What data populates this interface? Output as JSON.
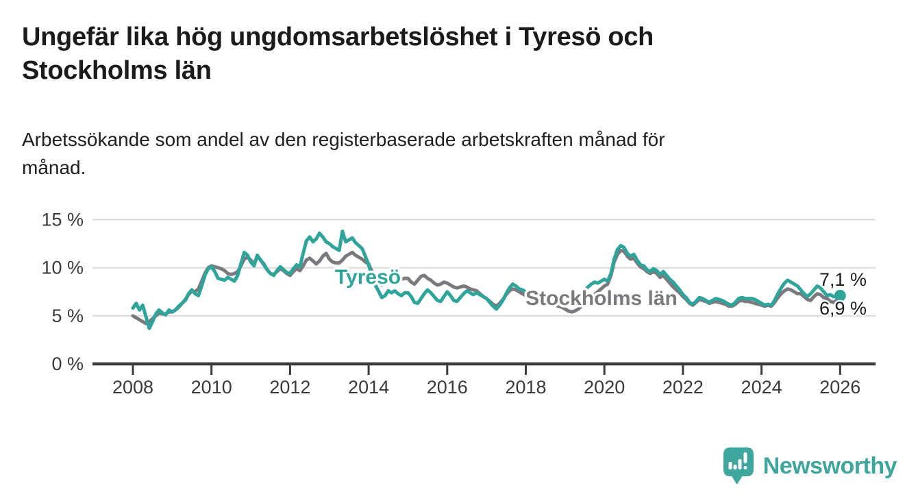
{
  "header": {
    "title": "Ungefär lika hög ungdomsarbetslöshet i Tyresö och\nStockholms län",
    "subtitle": "Arbetssökande som andel av den registerbaserade arbetskraften månad för\nmånad."
  },
  "colors": {
    "accent_teal": "#2fa49a",
    "line_gray": "#7c797e",
    "grid": "#d9d9d9",
    "axis": "#3b3b3b",
    "text": "#1d1d1d",
    "brand_teal": "#3fa69e"
  },
  "chart_data": {
    "type": "line",
    "title": "Ungefär lika hög ungdomsarbetslöshet i Tyresö och Stockholms län",
    "subtitle": "Arbetssökande som andel av den registerbaserade arbetskraften månad för månad.",
    "unit": "%",
    "frequency": "monthly",
    "x_start": "2008-01",
    "x_end": "2026-01",
    "xlabel": "",
    "ylabel": "",
    "ylim": [
      0,
      16
    ],
    "grid": "horizontal",
    "legend": "inline-labels",
    "x_ticks": [
      {
        "year": 2008,
        "label": "2008"
      },
      {
        "year": 2010,
        "label": "2010"
      },
      {
        "year": 2012,
        "label": "2012"
      },
      {
        "year": 2014,
        "label": "2014"
      },
      {
        "year": 2016,
        "label": "2016"
      },
      {
        "year": 2018,
        "label": "2018"
      },
      {
        "year": 2020,
        "label": "2020"
      },
      {
        "year": 2022,
        "label": "2022"
      },
      {
        "year": 2024,
        "label": "2024"
      },
      {
        "year": 2026,
        "label": "2026"
      }
    ],
    "y_ticks": [
      {
        "value": 15,
        "label": "15 %"
      },
      {
        "value": 10,
        "label": "10 %"
      },
      {
        "value": 5,
        "label": "5 %"
      },
      {
        "value": 0,
        "label": "0 %"
      }
    ],
    "series": [
      {
        "id": "tyreso",
        "name": "Tyresö",
        "color": "#2fa49a",
        "end_value": 7.1,
        "end_label": "7,1 %",
        "values": [
          5.8,
          6.3,
          5.6,
          6.1,
          4.9,
          3.7,
          4.4,
          5.2,
          5.6,
          5.3,
          5.1,
          5.6,
          5.4,
          5.6,
          6.0,
          6.3,
          6.6,
          7.3,
          7.7,
          7.3,
          7.1,
          8.1,
          9.2,
          9.9,
          10.1,
          9.6,
          8.9,
          8.8,
          8.7,
          9.0,
          8.8,
          8.6,
          9.2,
          10.4,
          11.6,
          11.3,
          10.6,
          10.2,
          11.3,
          10.8,
          10.4,
          9.8,
          9.4,
          9.2,
          9.7,
          10.1,
          9.8,
          9.5,
          9.4,
          9.9,
          10.3,
          10.1,
          11.5,
          12.8,
          13.2,
          12.7,
          13.0,
          13.6,
          13.2,
          12.7,
          12.5,
          12.2,
          12.0,
          11.8,
          13.8,
          12.7,
          12.9,
          13.1,
          12.6,
          12.3,
          12.0,
          11.2,
          10.3,
          9.2,
          8.2,
          7.6,
          6.9,
          7.1,
          7.6,
          7.4,
          7.6,
          7.3,
          7.1,
          7.4,
          7.4,
          7.0,
          6.4,
          6.3,
          6.8,
          7.3,
          7.7,
          7.4,
          7.0,
          6.6,
          6.5,
          7.0,
          7.5,
          7.1,
          6.6,
          6.5,
          6.9,
          7.3,
          7.6,
          7.4,
          7.2,
          7.4,
          7.2,
          7.0,
          6.8,
          6.4,
          6.0,
          5.7,
          6.1,
          6.6,
          7.3,
          7.9,
          8.3,
          8.1,
          7.8,
          7.7,
          7.5,
          7.2,
          6.9,
          6.7,
          6.6,
          6.6,
          6.8,
          7.0,
          6.9,
          6.7,
          6.6,
          6.6,
          6.6,
          6.4,
          6.3,
          6.5,
          6.8,
          7.2,
          7.6,
          8.0,
          8.3,
          8.5,
          8.4,
          8.6,
          8.8,
          8.6,
          9.4,
          10.9,
          11.9,
          12.3,
          12.1,
          11.5,
          11.2,
          11.4,
          10.8,
          10.3,
          10.2,
          9.8,
          9.6,
          9.9,
          9.7,
          9.3,
          9.6,
          9.2,
          8.8,
          8.5,
          8.1,
          7.7,
          7.2,
          6.9,
          6.4,
          6.2,
          6.5,
          6.9,
          6.8,
          6.6,
          6.4,
          6.6,
          6.8,
          6.7,
          6.6,
          6.4,
          6.2,
          6.1,
          6.4,
          6.8,
          6.9,
          6.8,
          6.8,
          6.8,
          6.7,
          6.5,
          6.3,
          6.1,
          6.2,
          6.1,
          6.6,
          7.3,
          7.9,
          8.4,
          8.7,
          8.5,
          8.3,
          8.1,
          7.7,
          7.3,
          7.0,
          7.3,
          7.7,
          8.1,
          7.9,
          7.5,
          7.1,
          7.2,
          7.0,
          7.0,
          7.1
        ]
      },
      {
        "id": "stockholms-lan",
        "name": "Stockholms län",
        "color": "#7c797e",
        "end_value": 6.9,
        "end_label": "6,9 %",
        "values": [
          5.0,
          4.8,
          4.6,
          4.4,
          4.2,
          4.4,
          4.7,
          5.0,
          5.3,
          5.2,
          5.2,
          5.4,
          5.4,
          5.6,
          5.9,
          6.3,
          6.7,
          7.2,
          7.6,
          7.5,
          7.8,
          8.6,
          9.4,
          10.0,
          10.2,
          10.1,
          10.0,
          9.9,
          9.7,
          9.4,
          9.3,
          9.4,
          9.6,
          10.2,
          10.9,
          11.1,
          10.8,
          10.4,
          11.2,
          10.8,
          10.3,
          9.8,
          9.4,
          9.3,
          9.6,
          9.9,
          9.7,
          9.4,
          9.2,
          9.6,
          9.9,
          9.7,
          10.2,
          10.8,
          11.0,
          10.7,
          10.4,
          10.7,
          11.2,
          11.5,
          10.9,
          10.6,
          10.5,
          10.5,
          10.8,
          11.2,
          11.4,
          11.6,
          11.3,
          11.1,
          10.9,
          10.6,
          10.4,
          9.6,
          8.9,
          8.5,
          8.2,
          8.3,
          8.5,
          8.6,
          8.7,
          8.8,
          8.8,
          8.9,
          8.9,
          8.5,
          8.3,
          8.7,
          9.1,
          9.2,
          8.9,
          8.7,
          8.4,
          8.2,
          8.3,
          8.5,
          8.4,
          8.2,
          8.0,
          7.9,
          8.0,
          8.1,
          8.0,
          7.8,
          7.7,
          7.6,
          7.3,
          7.0,
          6.8,
          6.5,
          6.2,
          6.0,
          6.3,
          6.7,
          7.2,
          7.6,
          7.8,
          7.7,
          7.5,
          7.3,
          7.1,
          6.9,
          6.7,
          6.5,
          6.3,
          6.2,
          6.2,
          6.3,
          6.2,
          6.1,
          6.0,
          5.9,
          5.7,
          5.5,
          5.4,
          5.5,
          5.7,
          6.0,
          6.3,
          6.6,
          6.9,
          7.2,
          7.5,
          7.8,
          8.1,
          8.3,
          9.2,
          10.6,
          11.4,
          11.8,
          11.7,
          11.2,
          10.9,
          11.0,
          10.5,
          10.1,
          9.9,
          9.6,
          9.4,
          9.6,
          9.4,
          9.0,
          9.2,
          8.8,
          8.4,
          8.0,
          7.7,
          7.4,
          7.0,
          6.7,
          6.3,
          6.1,
          6.4,
          6.7,
          6.6,
          6.5,
          6.3,
          6.4,
          6.5,
          6.4,
          6.3,
          6.2,
          6.0,
          6.0,
          6.2,
          6.5,
          6.6,
          6.5,
          6.5,
          6.4,
          6.3,
          6.2,
          6.1,
          6.0,
          6.1,
          6.0,
          6.4,
          6.9,
          7.3,
          7.6,
          7.8,
          7.7,
          7.5,
          7.3,
          7.3,
          7.0,
          6.7,
          6.6,
          7.0,
          7.3,
          7.2,
          6.9,
          6.8,
          6.5,
          6.4,
          6.6,
          6.9
        ]
      }
    ]
  },
  "annotations": {
    "tyreso_label": "Tyresö",
    "stockholm_label": "Stockholms län",
    "end_label_top": "7,1 %",
    "end_label_bottom": "6,9 %"
  },
  "footer": {
    "brand": "Newsworthy"
  }
}
